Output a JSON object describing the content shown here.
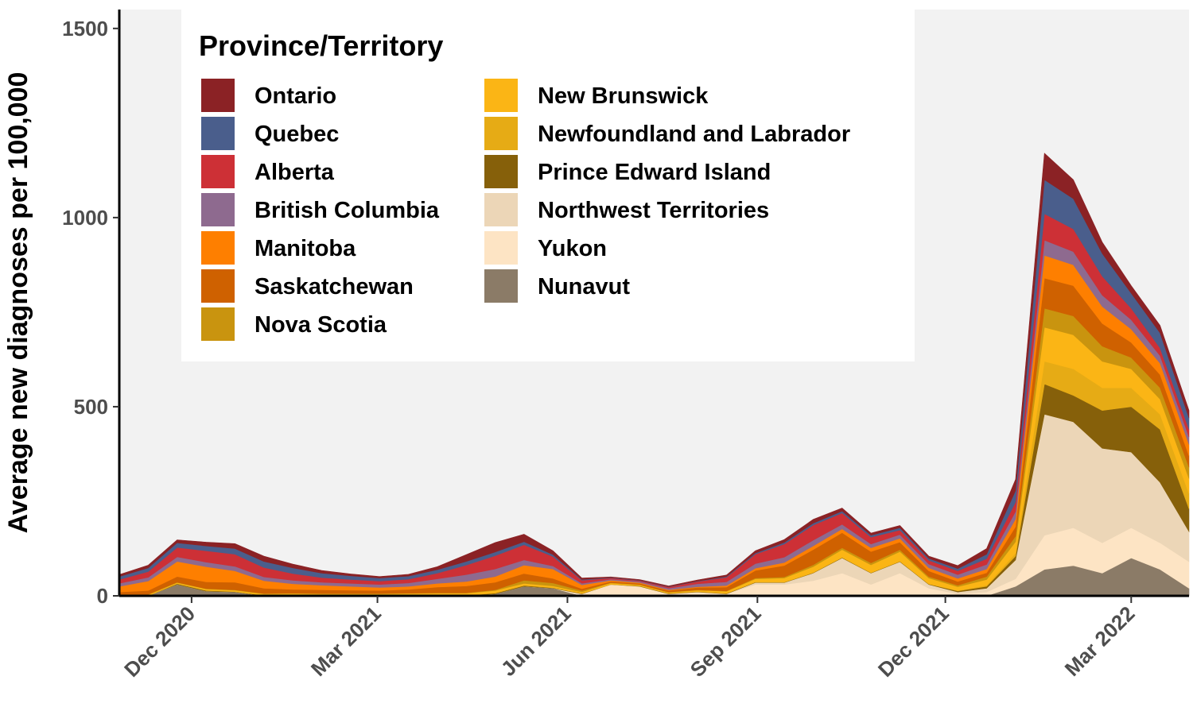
{
  "chart_data": {
    "type": "area",
    "stacked": true,
    "ylabel": "Average new diagnoses per 100,000",
    "xlabel": "",
    "ylim": [
      0,
      1550
    ],
    "xlim": [
      "2020-10-27",
      "2022-03-29"
    ],
    "y_ticks": [
      0,
      500,
      1000,
      1500
    ],
    "x_ticks": [
      {
        "date": "2020-12-01",
        "label": "Dec 2020"
      },
      {
        "date": "2021-03-01",
        "label": "Mar 2021"
      },
      {
        "date": "2021-06-01",
        "label": "Jun 2021"
      },
      {
        "date": "2021-09-01",
        "label": "Sep 2021"
      },
      {
        "date": "2021-12-01",
        "label": "Dec 2021"
      },
      {
        "date": "2022-03-01",
        "label": "Mar 2022"
      }
    ],
    "grid": false,
    "background": "#f2f2f2",
    "legend": {
      "title": "Province/Territory",
      "position": "top-left",
      "columns": 2
    },
    "x": [
      "2020-10-27",
      "2020-11-10",
      "2020-11-24",
      "2020-12-08",
      "2020-12-22",
      "2021-01-05",
      "2021-01-19",
      "2021-02-02",
      "2021-02-16",
      "2021-03-02",
      "2021-03-16",
      "2021-03-30",
      "2021-04-13",
      "2021-04-27",
      "2021-05-11",
      "2021-05-25",
      "2021-06-08",
      "2021-06-22",
      "2021-07-06",
      "2021-07-20",
      "2021-08-03",
      "2021-08-17",
      "2021-08-31",
      "2021-09-14",
      "2021-09-28",
      "2021-10-12",
      "2021-10-26",
      "2021-11-09",
      "2021-11-23",
      "2021-12-07",
      "2021-12-21",
      "2022-01-04",
      "2022-01-18",
      "2022-02-01",
      "2022-02-15",
      "2022-03-01",
      "2022-03-15",
      "2022-03-29"
    ],
    "series": [
      {
        "name": "Nunavut",
        "color": "#8b7b67",
        "values": [
          0,
          0,
          30,
          12,
          10,
          0,
          0,
          0,
          0,
          0,
          0,
          0,
          0,
          5,
          25,
          20,
          0,
          0,
          0,
          0,
          0,
          0,
          0,
          0,
          0,
          0,
          0,
          0,
          0,
          0,
          0,
          25,
          70,
          80,
          60,
          100,
          70,
          20
        ]
      },
      {
        "name": "Yukon",
        "color": "#fde4c4",
        "values": [
          0,
          0,
          0,
          0,
          0,
          0,
          0,
          0,
          0,
          0,
          0,
          0,
          0,
          0,
          0,
          0,
          5,
          30,
          25,
          5,
          10,
          5,
          30,
          30,
          40,
          60,
          30,
          60,
          20,
          5,
          10,
          20,
          90,
          100,
          80,
          80,
          70,
          70
        ]
      },
      {
        "name": "Northwest Territories",
        "color": "#ecd6b7",
        "values": [
          0,
          0,
          0,
          0,
          0,
          0,
          0,
          0,
          0,
          0,
          0,
          0,
          0,
          0,
          0,
          0,
          0,
          0,
          0,
          0,
          0,
          0,
          5,
          5,
          20,
          40,
          30,
          30,
          10,
          5,
          10,
          50,
          320,
          280,
          250,
          200,
          160,
          80
        ]
      },
      {
        "name": "Prince Edward Island",
        "color": "#86600a",
        "values": [
          0,
          0,
          2,
          2,
          1,
          1,
          1,
          1,
          1,
          1,
          1,
          1,
          1,
          2,
          2,
          1,
          1,
          0,
          1,
          1,
          1,
          1,
          1,
          1,
          1,
          1,
          1,
          1,
          1,
          3,
          5,
          10,
          80,
          70,
          100,
          120,
          140,
          60
        ]
      },
      {
        "name": "Newfoundland and Labrador",
        "color": "#e6ab15",
        "values": [
          1,
          1,
          1,
          1,
          1,
          1,
          1,
          1,
          1,
          1,
          1,
          1,
          1,
          1,
          1,
          1,
          1,
          1,
          1,
          1,
          1,
          1,
          1,
          1,
          1,
          1,
          1,
          1,
          1,
          1,
          3,
          8,
          60,
          70,
          60,
          50,
          40,
          40
        ]
      },
      {
        "name": "New Brunswick",
        "color": "#fbb515",
        "values": [
          2,
          2,
          2,
          3,
          3,
          3,
          4,
          3,
          3,
          3,
          4,
          5,
          5,
          6,
          5,
          4,
          3,
          3,
          2,
          2,
          3,
          5,
          8,
          10,
          15,
          20,
          20,
          25,
          15,
          10,
          15,
          30,
          90,
          90,
          70,
          50,
          40,
          40
        ]
      },
      {
        "name": "Nova Scotia",
        "color": "#c9940f",
        "values": [
          1,
          1,
          1,
          1,
          1,
          1,
          1,
          1,
          1,
          1,
          1,
          1,
          1,
          2,
          8,
          8,
          4,
          1,
          1,
          1,
          1,
          1,
          2,
          3,
          5,
          5,
          5,
          5,
          4,
          4,
          8,
          15,
          50,
          50,
          40,
          30,
          30,
          30
        ]
      },
      {
        "name": "Saskatchewan",
        "color": "#cf6100",
        "values": [
          6,
          10,
          15,
          18,
          20,
          14,
          10,
          10,
          9,
          8,
          10,
          15,
          18,
          20,
          18,
          12,
          5,
          3,
          3,
          4,
          6,
          10,
          20,
          30,
          40,
          40,
          30,
          20,
          15,
          10,
          10,
          25,
          80,
          80,
          60,
          40,
          35,
          30
        ]
      },
      {
        "name": "Manitoba",
        "color": "#fe7f00",
        "values": [
          15,
          25,
          40,
          40,
          30,
          20,
          15,
          12,
          10,
          8,
          8,
          10,
          12,
          15,
          22,
          25,
          10,
          3,
          2,
          2,
          2,
          4,
          6,
          8,
          10,
          10,
          10,
          10,
          8,
          8,
          10,
          20,
          60,
          55,
          45,
          35,
          30,
          30
        ]
      },
      {
        "name": "British Columbia",
        "color": "#8e6a8f",
        "values": [
          8,
          10,
          12,
          12,
          12,
          10,
          9,
          8,
          8,
          8,
          9,
          12,
          18,
          20,
          14,
          8,
          4,
          3,
          3,
          4,
          8,
          10,
          12,
          14,
          15,
          12,
          10,
          10,
          10,
          10,
          12,
          20,
          40,
          35,
          30,
          25,
          20,
          20
        ]
      },
      {
        "name": "Alberta",
        "color": "#cd3036",
        "values": [
          10,
          15,
          25,
          30,
          32,
          25,
          18,
          12,
          10,
          9,
          10,
          15,
          25,
          35,
          40,
          25,
          8,
          3,
          2,
          3,
          6,
          12,
          25,
          35,
          40,
          30,
          18,
          12,
          10,
          10,
          15,
          25,
          70,
          60,
          50,
          30,
          20,
          20
        ]
      },
      {
        "name": "Quebec",
        "color": "#4a5e8c",
        "values": [
          8,
          10,
          12,
          13,
          15,
          16,
          15,
          12,
          10,
          8,
          8,
          9,
          10,
          10,
          8,
          5,
          2,
          1,
          1,
          1,
          1,
          2,
          3,
          4,
          5,
          5,
          5,
          6,
          5,
          6,
          12,
          30,
          90,
          80,
          60,
          40,
          40,
          30
        ]
      },
      {
        "name": "Ontario",
        "color": "#8b2225",
        "values": [
          5,
          7,
          8,
          10,
          13,
          14,
          10,
          7,
          5,
          4,
          5,
          8,
          18,
          25,
          20,
          10,
          4,
          2,
          2,
          2,
          3,
          4,
          6,
          8,
          10,
          8,
          6,
          6,
          6,
          8,
          15,
          30,
          70,
          50,
          30,
          20,
          20,
          20
        ]
      }
    ],
    "legend_order": [
      "Ontario",
      "Quebec",
      "Alberta",
      "British Columbia",
      "Manitoba",
      "Saskatchewan",
      "Nova Scotia",
      "New Brunswick",
      "Newfoundland and Labrador",
      "Prince Edward Island",
      "Northwest Territories",
      "Yukon",
      "Nunavut"
    ]
  }
}
